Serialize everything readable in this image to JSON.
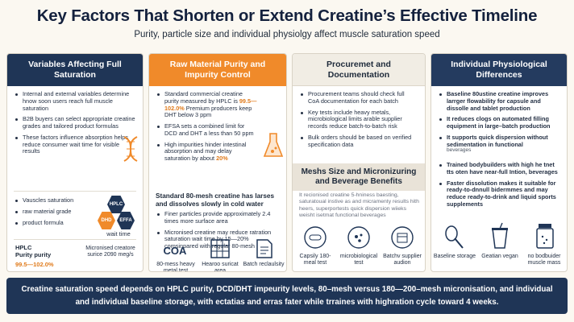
{
  "title": "Key Factors That Shorten or Extend Creatine’s Effective Timeline",
  "subtitle": "Purity, particle size and individual physiolgy affect muscle saturation speed",
  "panel1": {
    "heading": "Variables Affecting Full Saturation",
    "bullets": [
      "Internal and external variables determine hnow soon users reach full muscle saturation",
      "B2B buyers can select appropriate creatine grades and tailored product formulas",
      "These factors influence absorption helps reduce consumer wait time for visible results"
    ],
    "list": [
      "Vauscles saturation",
      "raw material grade",
      "product formula"
    ],
    "hex_labels": [
      "HPLC",
      "DHD",
      "EFFA"
    ],
    "wait_label": "wait time",
    "hplc_title": "HPLC\nPurity purity",
    "hplc_value": "99.5—102.0%",
    "micro_caption": "Micronised creatore surice 2090 meg/s"
  },
  "panel2": {
    "heading": "Raw Material Purity and Impurity Control",
    "bullets": [
      {
        "pre": "Standard commercial creatine purity measured by HPLC is ",
        "hl": "99.5—102.0%",
        "post": " Premium producers keep DHT below 3 ppm"
      },
      {
        "pre": "EFSA sets a combined limit for DCD and DHT a less than 50 ppm",
        "hl": "",
        "post": ""
      },
      {
        "pre": "High impurities hinder intestinal absorption and may delay saturation by about ",
        "hl": "20%",
        "post": ""
      }
    ],
    "subheading": "Standard 80-mesh creatine has larses and dissolves slowly in cold water",
    "bullets2": [
      "Finer particles provide approximately 2.4 times more surface area",
      "Micronised creatine may reduce ratration saturation wait time by 15—20% comsinpared with regular 80-mesh"
    ],
    "coa_label": "COA",
    "icon_captions": [
      "80-mess heavy metal test",
      "Hearoo suricat area",
      "Batch reclaulsity"
    ]
  },
  "panel3": {
    "heading": "Procuremet and Documentation",
    "bullets": [
      "Procurement teams should check full CoA documentation for each batch",
      "Key tests include heavy metals, microbiological limits arable supplier records reduce batch-to-batch risk",
      "Bulk orders should be based on verified specification data"
    ],
    "subheading": "Meshs Size and Micronizuring and Beverage Benefits",
    "body": "It recionised creatine 5-hniness baesting, saturatoual instive as and micramenty results hith heers, superportests quick dispersion wiieks weisht isetmat functional beverages",
    "icon_captions": [
      "Capsily 180-meal test",
      "microbiological test",
      "Batchv supplier audion"
    ]
  },
  "panel4": {
    "heading": "Individual Physiological Differences",
    "bullets": [
      "Baseline 80ustine creatine improves larrger flowability for capsule and dissolle and tablet production",
      "It reduces clogs on automated filling equipment in large–batch production",
      "It supports quick dispersion without sedimentation in functional"
    ],
    "note": "beverages",
    "bullets2": [
      "Trained bodybuilders with high he tnet tts oten have near-full Intion, beverages",
      "Faster dissolution makes it suitable for ready-to-dnnull bidermmes and may reduce ready-to-drink and liquid sports supplements"
    ],
    "icon_captions": [
      "Baseline storage",
      "Geatian vegan",
      "no bodbuider muscle mass"
    ]
  },
  "footer": {
    "line1": "Creatine saturation speed depends on HPLC purity, DCD/DHT impeurity levels, 80–mesh versus 180—200–mesh micronisation, and individual",
    "line2": "and individual baseline storage, with ectatias and erras fater while trraines with highration cycle toward 4 weeks."
  },
  "colors": {
    "navy": "#1f3556",
    "orange": "#f08a2a",
    "hex_navy": "#1f3556",
    "hex_orange": "#f08a2a"
  }
}
